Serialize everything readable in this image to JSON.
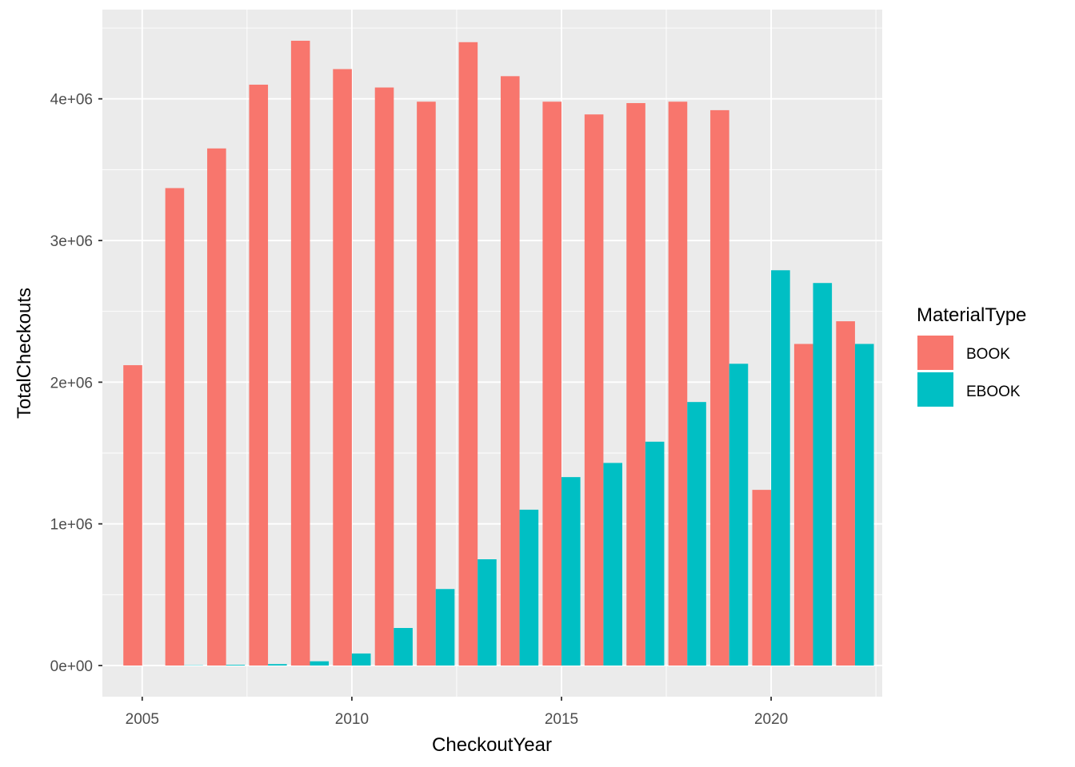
{
  "chart_data": {
    "type": "bar",
    "xlabel": "CheckoutYear",
    "ylabel": "TotalCheckouts",
    "x": [
      2005,
      2006,
      2007,
      2008,
      2009,
      2010,
      2011,
      2012,
      2013,
      2014,
      2015,
      2016,
      2017,
      2018,
      2019,
      2020,
      2021,
      2022
    ],
    "xlim": [
      2004.05,
      2022.65
    ],
    "ylim": [
      -220000,
      4630000
    ],
    "x_ticks": [
      2005,
      2010,
      2015,
      2020
    ],
    "x_tick_labels": [
      "2005",
      "2010",
      "2015",
      "2020"
    ],
    "y_ticks": [
      0,
      1000000,
      2000000,
      3000000,
      4000000
    ],
    "y_tick_labels": [
      "0e+00",
      "1e+06",
      "2e+06",
      "3e+06",
      "4e+06"
    ],
    "grid": true,
    "legend": {
      "title": "MaterialType",
      "position": "right"
    },
    "series": [
      {
        "name": "BOOK",
        "color": "#F8766D",
        "values": [
          2120000,
          3370000,
          3650000,
          4100000,
          4410000,
          4210000,
          4080000,
          3980000,
          4400000,
          4160000,
          3980000,
          3890000,
          3970000,
          3980000,
          3920000,
          1240000,
          2270000,
          2430000
        ]
      },
      {
        "name": "EBOOK",
        "color": "#00BFC4",
        "values": [
          0,
          2000,
          5000,
          10000,
          30000,
          85000,
          265000,
          540000,
          750000,
          1100000,
          1330000,
          1430000,
          1580000,
          1860000,
          2130000,
          2790000,
          2700000,
          2270000
        ]
      }
    ]
  },
  "colors": {
    "panel_background": "#EBEBEB",
    "grid_major": "#FFFFFF"
  }
}
